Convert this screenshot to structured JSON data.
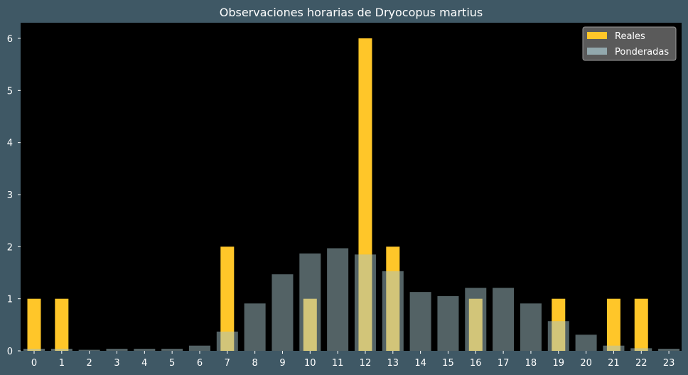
{
  "chart_data": {
    "type": "bar",
    "title": "Observaciones horarias de Dryocopus martius",
    "xlabel": "",
    "ylabel": "",
    "categories": [
      "0",
      "1",
      "2",
      "3",
      "4",
      "5",
      "6",
      "7",
      "8",
      "9",
      "10",
      "11",
      "12",
      "13",
      "14",
      "15",
      "16",
      "17",
      "18",
      "19",
      "20",
      "21",
      "22",
      "23"
    ],
    "yticks": [
      0,
      1,
      2,
      3,
      4,
      5,
      6
    ],
    "ylim": [
      0,
      6.3
    ],
    "grid": false,
    "legend_position": "top-right",
    "series": [
      {
        "name": "Reales",
        "color": "#ffc629",
        "values": [
          1,
          1,
          0,
          0,
          0,
          0,
          0,
          2,
          0,
          0,
          1,
          0,
          6,
          2,
          0,
          0,
          1,
          0,
          0,
          1,
          0,
          1,
          1,
          0
        ]
      },
      {
        "name": "Ponderadas",
        "color": "#a6c3c9",
        "values": [
          0.04,
          0.04,
          0.02,
          0.04,
          0.04,
          0.04,
          0.1,
          0.37,
          0.91,
          1.47,
          1.87,
          1.97,
          1.85,
          1.53,
          1.13,
          1.05,
          1.21,
          1.21,
          0.91,
          0.57,
          0.31,
          0.1,
          0.05,
          0.04
        ]
      }
    ]
  },
  "colors": {
    "figure_background": "#3f5865",
    "plot_background": "#000000",
    "text": "#ffffff",
    "legend_background": "#5a5a5a",
    "legend_border": "#9a9a9a"
  }
}
